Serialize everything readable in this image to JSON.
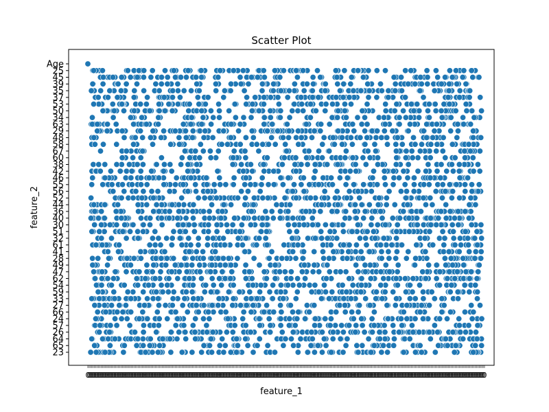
{
  "chart_data": {
    "type": "scatter",
    "title": "Scatter Plot",
    "xlabel": "feature_1",
    "ylabel": "feature_2",
    "y_categories": [
      "Age",
      "25",
      "45",
      "39",
      "35",
      "37",
      "53",
      "50",
      "34",
      "63",
      "29",
      "48",
      "58",
      "67",
      "60",
      "38",
      "42",
      "46",
      "55",
      "56",
      "52",
      "44",
      "36",
      "40",
      "30",
      "51",
      "32",
      "61",
      "41",
      "28",
      "49",
      "47",
      "62",
      "54",
      "59",
      "33",
      "27",
      "66",
      "24",
      "57",
      "26",
      "64",
      "65",
      "23"
    ],
    "x_tick_count": 300,
    "x_tick_text": "0",
    "point_count_per_row": 70,
    "marker_color": "#1f77b4",
    "marker_edge": "#ffffff",
    "grid": false
  }
}
